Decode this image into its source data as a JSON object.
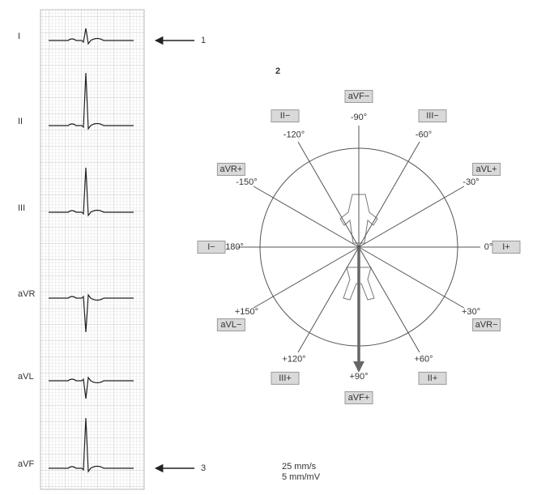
{
  "leads": {
    "labels": [
      "I",
      "II",
      "III",
      "aVR",
      "aVL",
      "aVF"
    ]
  },
  "callouts": {
    "first": "1",
    "second": "2",
    "third": "3"
  },
  "hexaxial": {
    "axes": [
      {
        "box": "I−",
        "angle": "+/-180°"
      },
      {
        "box": "aVR+",
        "angle": "-150°"
      },
      {
        "box": "II−",
        "angle": "-120°"
      },
      {
        "box": "aVF−",
        "angle": "-90°"
      },
      {
        "box": "III−",
        "angle": "-60°"
      },
      {
        "box": "aVL+",
        "angle": "-30°"
      },
      {
        "box": "I+",
        "angle": "0°"
      },
      {
        "box": "aVR−",
        "angle": "+30°"
      },
      {
        "box": "II+",
        "angle": "+60°"
      },
      {
        "box": "aVF+",
        "angle": "+90°"
      },
      {
        "box": "III+",
        "angle": "+120°"
      },
      {
        "box": "aVL−",
        "angle": "+150°"
      }
    ]
  },
  "footer": {
    "speed": "25 mm/s",
    "gain": "5 mm/mV"
  }
}
